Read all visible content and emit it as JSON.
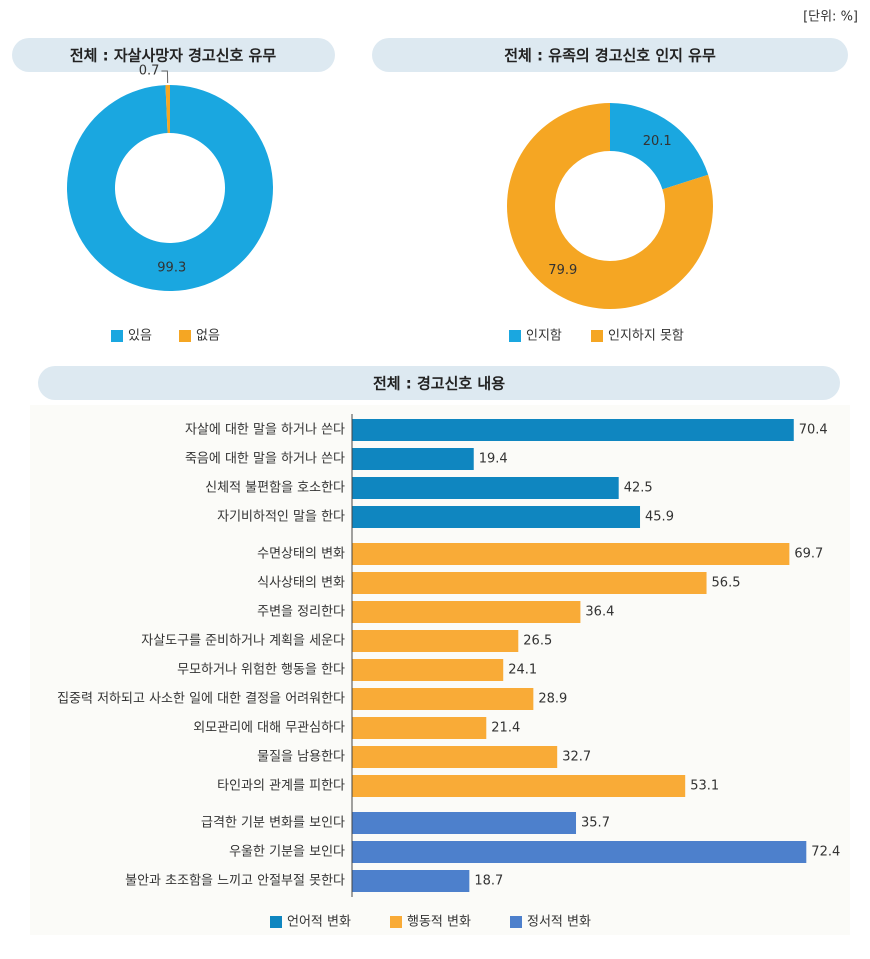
{
  "unit": "[단위: %]",
  "chart_data": [
    {
      "type": "pie",
      "title": "전체 : 자살사망자 경고신호 유무",
      "categories": [
        "있음",
        "없음"
      ],
      "values": [
        99.3,
        0.7
      ],
      "colors": [
        "#1aa7e0",
        "#f5a623"
      ],
      "donut": true
    },
    {
      "type": "pie",
      "title": "전체 : 유족의 경고신호 인지 유무",
      "categories": [
        "인지함",
        "인지하지 못함"
      ],
      "values": [
        20.1,
        79.9
      ],
      "colors": [
        "#1aa7e0",
        "#f5a623"
      ],
      "donut": true
    },
    {
      "type": "barh",
      "title": "전체 : 경고신호 내용",
      "categories": [
        "자살에 대한 말을 하거나 쓴다",
        "죽음에 대한 말을 하거나 쓴다",
        "신체적 불편함을 호소한다",
        "자기비하적인 말을 한다",
        "수면상태의 변화",
        "식사상태의 변화",
        "주변을 정리한다",
        "자살도구를 준비하거나 계획을 세운다",
        "무모하거나 위험한 행동을 한다",
        "집중력 저하되고 사소한 일에 대한 결정을 어려워한다",
        "외모관리에 대해 무관심하다",
        "물질을 남용한다",
        "타인과의 관계를 피한다",
        "급격한 기분 변화를 보인다",
        "우울한 기분을 보인다",
        "불안과 초조함을 느끼고 안절부절 못한다"
      ],
      "series": [
        {
          "name": "언어적 변화",
          "color": "#0f86c0",
          "values": [
            70.4,
            19.4,
            42.5,
            45.9,
            null,
            null,
            null,
            null,
            null,
            null,
            null,
            null,
            null,
            null,
            null,
            null
          ]
        },
        {
          "name": "행동적 변화",
          "color": "#f9ab37",
          "values": [
            null,
            null,
            null,
            null,
            69.7,
            56.5,
            36.4,
            26.5,
            24.1,
            28.9,
            21.4,
            32.7,
            53.1,
            null,
            null,
            null
          ]
        },
        {
          "name": "정서적 변화",
          "color": "#4d80cc",
          "values": [
            null,
            null,
            null,
            null,
            null,
            null,
            null,
            null,
            null,
            null,
            null,
            null,
            null,
            35.7,
            72.4,
            18.7
          ]
        }
      ],
      "xlim": [
        0,
        80
      ]
    }
  ]
}
